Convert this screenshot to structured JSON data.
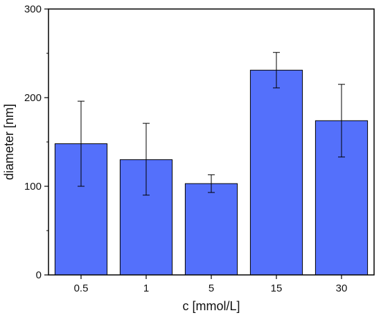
{
  "chart_data": {
    "type": "bar",
    "categories": [
      "0.5",
      "1",
      "5",
      "15",
      "30"
    ],
    "values": [
      148,
      130,
      103,
      231,
      174
    ],
    "error_low": [
      100,
      90,
      93,
      211,
      133
    ],
    "error_high": [
      196,
      171,
      113,
      251,
      215
    ],
    "xlabel": "c [mmol/L]",
    "ylabel": "diameter [nm]",
    "ylim": [
      0,
      300
    ],
    "yticks": [
      "0",
      "100",
      "200",
      "300"
    ],
    "grid": false,
    "legend": "none",
    "bar_color": "#5470fb",
    "edge_color": "#000000"
  }
}
